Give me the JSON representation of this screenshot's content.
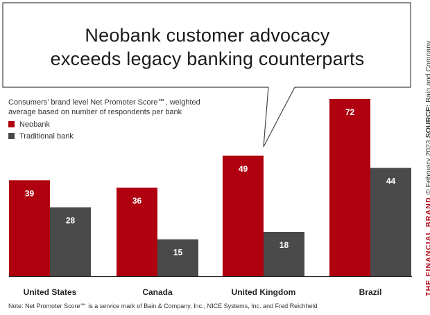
{
  "headline": {
    "line1": "Neobank customer advocacy",
    "line2": "exceeds legacy banking counterparts"
  },
  "subtitle": {
    "line1": "Consumers’ brand level Net Promoter Score℠, weighted",
    "line2": "average based on number of respondents per bank"
  },
  "colors": {
    "neobank": "#b0000f",
    "traditional": "#4a4a4a",
    "bar_label": "#ffffff",
    "axis": "#222222"
  },
  "chart_data": {
    "type": "bar",
    "categories": [
      "United States",
      "Canada",
      "United Kingdom",
      "Brazil"
    ],
    "series": [
      {
        "name": "Neobank",
        "values": [
          39,
          36,
          49,
          72
        ]
      },
      {
        "name": "Traditional bank",
        "values": [
          28,
          15,
          18,
          44
        ]
      }
    ],
    "ylim": [
      0,
      72
    ],
    "legend": "top-left",
    "grid": false
  },
  "side": {
    "brand": "THE FINANCIAL BRAND",
    "copyright": " © February 2023 ",
    "source_label": "SOURCE:",
    "source": " Bain and Company"
  },
  "footnote": "Note: Net Promoter Score℠ is a service mark of Bain & Company, Inc., NICE Systems, Inc. and Fred Reichheld"
}
